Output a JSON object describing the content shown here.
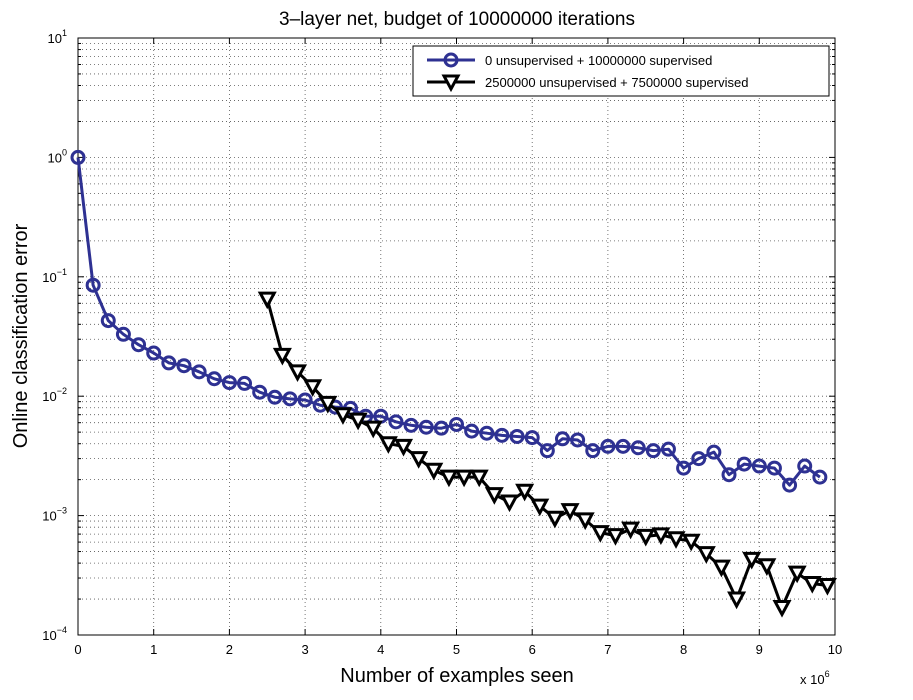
{
  "chart_data": {
    "type": "line",
    "title": "3–layer net, budget of 10000000 iterations",
    "xlabel": "Number of examples seen",
    "ylabel": "Online classification error",
    "x_multiplier": "x 10",
    "x_multiplier_exp": "6",
    "xlim": [
      0,
      10
    ],
    "ylim": [
      0.0001,
      10
    ],
    "yscale": "log",
    "grid": true,
    "legend_position": "top-right",
    "x_ticks": [
      "0",
      "1",
      "2",
      "3",
      "4",
      "5",
      "6",
      "7",
      "8",
      "9",
      "10"
    ],
    "y_ticks": [
      {
        "base": "10",
        "exp": "1",
        "value": 10
      },
      {
        "base": "10",
        "exp": "0",
        "value": 1
      },
      {
        "base": "10",
        "exp": "−1",
        "value": 0.1
      },
      {
        "base": "10",
        "exp": "−2",
        "value": 0.01
      },
      {
        "base": "10",
        "exp": "−3",
        "value": 0.001
      },
      {
        "base": "10",
        "exp": "−4",
        "value": 0.0001
      }
    ],
    "series": [
      {
        "name": "0 unsupervised + 10000000 supervised",
        "color": "#2e3192",
        "marker": "circle",
        "x": [
          0.0,
          0.2,
          0.4,
          0.6,
          0.8,
          1.0,
          1.2,
          1.4,
          1.6,
          1.8,
          2.0,
          2.2,
          2.4,
          2.6,
          2.8,
          3.0,
          3.2,
          3.4,
          3.6,
          3.8,
          4.0,
          4.2,
          4.4,
          4.6,
          4.8,
          5.0,
          5.2,
          5.4,
          5.6,
          5.8,
          6.0,
          6.2,
          6.4,
          6.6,
          6.8,
          7.0,
          7.2,
          7.4,
          7.6,
          7.8,
          8.0,
          8.2,
          8.4,
          8.6,
          8.8,
          9.0,
          9.2,
          9.4,
          9.6,
          9.8
        ],
        "y": [
          1.0,
          0.085,
          0.043,
          0.033,
          0.027,
          0.023,
          0.019,
          0.018,
          0.016,
          0.014,
          0.013,
          0.0128,
          0.0108,
          0.0098,
          0.0095,
          0.0093,
          0.0084,
          0.0081,
          0.0079,
          0.0068,
          0.0068,
          0.0061,
          0.0057,
          0.0055,
          0.0054,
          0.0058,
          0.0051,
          0.0049,
          0.0047,
          0.0046,
          0.0045,
          0.0035,
          0.0044,
          0.0043,
          0.0035,
          0.0038,
          0.0038,
          0.0037,
          0.0035,
          0.0036,
          0.0025,
          0.003,
          0.0034,
          0.0022,
          0.0027,
          0.0026,
          0.0025,
          0.0018,
          0.0026,
          0.0021
        ]
      },
      {
        "name": "2500000 unsupervised + 7500000 supervised",
        "color": "#000000",
        "marker": "triangle-down",
        "x": [
          2.5,
          2.7,
          2.9,
          3.1,
          3.3,
          3.5,
          3.7,
          3.9,
          4.1,
          4.3,
          4.5,
          4.7,
          4.9,
          5.1,
          5.3,
          5.5,
          5.7,
          5.9,
          6.1,
          6.3,
          6.5,
          6.7,
          6.9,
          7.1,
          7.3,
          7.5,
          7.7,
          7.9,
          8.1,
          8.3,
          8.5,
          8.7,
          8.9,
          9.1,
          9.3,
          9.5,
          9.7,
          9.9
        ],
        "y": [
          0.065,
          0.022,
          0.016,
          0.012,
          0.0087,
          0.007,
          0.0063,
          0.0054,
          0.004,
          0.0038,
          0.003,
          0.0024,
          0.0021,
          0.0021,
          0.0021,
          0.0015,
          0.0013,
          0.0016,
          0.0012,
          0.00095,
          0.0011,
          0.00092,
          0.00072,
          0.00068,
          0.00077,
          0.00067,
          0.00069,
          0.00064,
          0.00061,
          0.00048,
          0.00037,
          0.0002,
          0.00043,
          0.00038,
          0.00017,
          0.00033,
          0.00027,
          0.00026
        ]
      }
    ]
  }
}
